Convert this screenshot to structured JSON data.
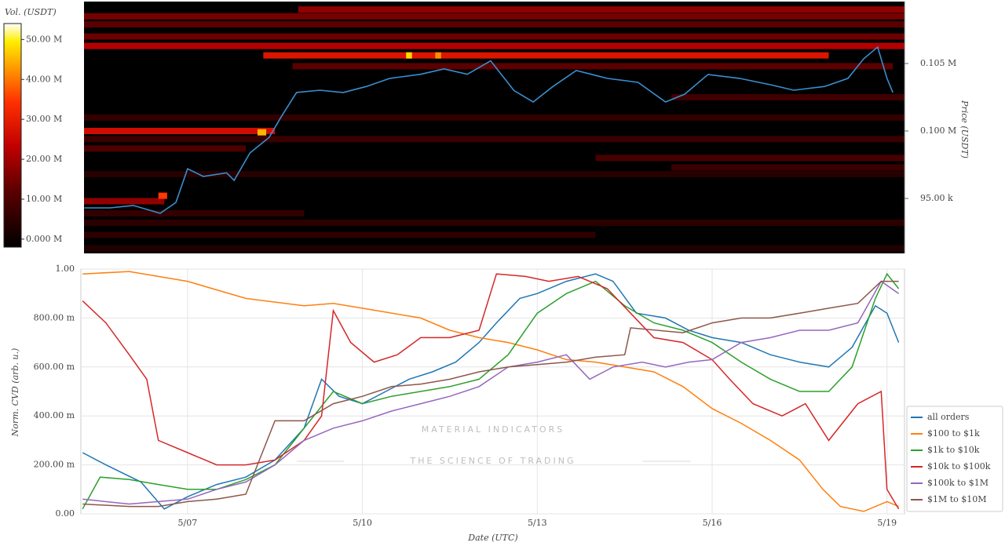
{
  "chart_data": [
    {
      "type": "heatmap",
      "y_label": "Price (USDT)",
      "colorbar_label": "Vol. (USDT)",
      "xlim": [
        5.17,
        19.3
      ],
      "ylim": [
        90930,
        109590
      ],
      "yticks": [
        {
          "value": 95000,
          "label": "95.00 k"
        },
        {
          "value": 100000,
          "label": "0.100 M"
        },
        {
          "value": 105000,
          "label": "0.105 M"
        }
      ],
      "vlim": [
        -2,
        54
      ],
      "vticks": [
        {
          "value": 0,
          "label": "0.000 M"
        },
        {
          "value": 10,
          "label": "10.00 M"
        },
        {
          "value": 20,
          "label": "20.00 M"
        },
        {
          "value": 30,
          "label": "30.00 M"
        },
        {
          "value": 40,
          "label": "40.00 M"
        },
        {
          "value": 50,
          "label": "50.00 M"
        }
      ],
      "cells": [
        {
          "price": 109000,
          "start": 8.9,
          "end": 19.3,
          "volume": 18
        },
        {
          "price": 108500,
          "start": 5.17,
          "end": 19.3,
          "volume": 15
        },
        {
          "price": 107900,
          "start": 5.17,
          "end": 19.3,
          "volume": 12
        },
        {
          "price": 107000,
          "start": 5.17,
          "end": 19.3,
          "volume": 14
        },
        {
          "price": 106300,
          "start": 5.17,
          "end": 19.3,
          "volume": 22
        },
        {
          "price": 105600,
          "start": 8.3,
          "end": 18.0,
          "volume": 28
        },
        {
          "price": 104800,
          "start": 8.8,
          "end": 19.1,
          "volume": 12
        },
        {
          "price": 102500,
          "start": 15.3,
          "end": 19.3,
          "volume": 8
        },
        {
          "price": 101000,
          "start": 5.17,
          "end": 19.3,
          "volume": 6
        },
        {
          "price": 100000,
          "start": 5.17,
          "end": 8.5,
          "volume": 26
        },
        {
          "price": 99400,
          "start": 5.17,
          "end": 19.3,
          "volume": 7
        },
        {
          "price": 98700,
          "start": 5.17,
          "end": 8.0,
          "volume": 10
        },
        {
          "price": 98000,
          "start": 14.0,
          "end": 19.3,
          "volume": 9
        },
        {
          "price": 97300,
          "start": 15.3,
          "end": 19.3,
          "volume": 7
        },
        {
          "price": 96800,
          "start": 5.17,
          "end": 19.3,
          "volume": 4
        },
        {
          "price": 94800,
          "start": 5.17,
          "end": 6.6,
          "volume": 18
        },
        {
          "price": 93900,
          "start": 5.17,
          "end": 9.0,
          "volume": 6
        },
        {
          "price": 93200,
          "start": 5.17,
          "end": 19.3,
          "volume": 5
        },
        {
          "price": 92300,
          "start": 5.17,
          "end": 14.0,
          "volume": 5
        },
        {
          "price": 91300,
          "start": 5.17,
          "end": 19.3,
          "volume": 3
        },
        {
          "price": 95200,
          "start": 6.5,
          "end": 6.65,
          "volume": 35
        },
        {
          "price": 99900,
          "start": 8.2,
          "end": 8.35,
          "volume": 45
        },
        {
          "price": 105600,
          "start": 10.75,
          "end": 10.85,
          "volume": 48
        },
        {
          "price": 105600,
          "start": 11.25,
          "end": 11.35,
          "volume": 42
        }
      ],
      "price": {
        "color": "#3a8fd0",
        "x": [
          5.23,
          5.67,
          6.07,
          6.53,
          6.8,
          7.0,
          7.27,
          7.67,
          7.8,
          8.07,
          8.4,
          8.6,
          8.87,
          9.27,
          9.67,
          10.07,
          10.47,
          11.0,
          11.4,
          11.8,
          12.2,
          12.6,
          12.93,
          13.27,
          13.67,
          14.2,
          14.73,
          15.2,
          15.53,
          15.93,
          16.47,
          17.0,
          17.4,
          17.93,
          18.33,
          18.6,
          18.84,
          19.0,
          19.1
        ],
        "values": [
          94300,
          94300,
          94480,
          93900,
          94700,
          97200,
          96630,
          96900,
          96340,
          98370,
          99530,
          101000,
          102850,
          103020,
          102850,
          103300,
          103900,
          104200,
          104600,
          104200,
          105200,
          103000,
          102150,
          103300,
          104480,
          103900,
          103600,
          102150,
          102730,
          104190,
          103900,
          103430,
          103020,
          103300,
          103900,
          105350,
          106220,
          103900,
          102850
        ]
      }
    },
    {
      "type": "line",
      "x_label": "Date (UTC)",
      "y_label": "Norm. CVD (arb. u.)",
      "watermark": [
        "MATERIAL INDICATORS",
        "THE SCIENCE OF TRADING"
      ],
      "xlim": [
        5.17,
        19.3
      ],
      "xticks": [
        {
          "value": 7,
          "label": "5/07"
        },
        {
          "value": 10,
          "label": "5/10"
        },
        {
          "value": 13,
          "label": "5/13"
        },
        {
          "value": 16,
          "label": "5/16"
        },
        {
          "value": 19,
          "label": "5/19"
        }
      ],
      "ylim": [
        0,
        1
      ],
      "yticks": [
        {
          "value": 0,
          "label": "0.00"
        },
        {
          "value": 0.2,
          "label": "200.00 m"
        },
        {
          "value": 0.4,
          "label": "400.00 m"
        },
        {
          "value": 0.6,
          "label": "600.00 m"
        },
        {
          "value": 0.8,
          "label": "800.00 m"
        },
        {
          "value": 1,
          "label": "1.00"
        }
      ],
      "legend": "right",
      "series": [
        {
          "name": "all orders",
          "color": "#1f77b4",
          "x": [
            5.2,
            5.6,
            6.2,
            6.6,
            7.0,
            7.5,
            8.0,
            8.5,
            9.0,
            9.3,
            9.6,
            10.0,
            10.4,
            10.8,
            11.2,
            11.6,
            12.0,
            12.3,
            12.7,
            13.0,
            13.5,
            14.0,
            14.3,
            14.7,
            15.2,
            15.6,
            16.0,
            16.5,
            17.0,
            17.5,
            18.0,
            18.4,
            18.8,
            19.0,
            19.2
          ],
          "values": [
            0.25,
            0.2,
            0.13,
            0.02,
            0.07,
            0.12,
            0.15,
            0.22,
            0.35,
            0.55,
            0.48,
            0.45,
            0.5,
            0.55,
            0.58,
            0.62,
            0.7,
            0.78,
            0.88,
            0.9,
            0.95,
            0.98,
            0.95,
            0.82,
            0.8,
            0.75,
            0.72,
            0.7,
            0.65,
            0.62,
            0.6,
            0.68,
            0.85,
            0.82,
            0.7
          ]
        },
        {
          "name": "$100 to $1k",
          "color": "#ff7f0e",
          "x": [
            5.2,
            6.0,
            7.0,
            8.0,
            9.0,
            9.5,
            10.0,
            11.0,
            11.5,
            12.0,
            12.5,
            13.0,
            13.5,
            14.0,
            14.5,
            15.0,
            15.5,
            16.0,
            16.5,
            17.0,
            17.5,
            17.9,
            18.2,
            18.6,
            19.0,
            19.2
          ],
          "values": [
            0.98,
            0.99,
            0.95,
            0.88,
            0.85,
            0.86,
            0.84,
            0.8,
            0.75,
            0.72,
            0.7,
            0.67,
            0.63,
            0.62,
            0.6,
            0.58,
            0.52,
            0.43,
            0.37,
            0.3,
            0.22,
            0.1,
            0.03,
            0.01,
            0.05,
            0.03
          ]
        },
        {
          "name": "$1k to $10k",
          "color": "#2ca02c",
          "x": [
            5.2,
            5.5,
            6.0,
            6.5,
            7.0,
            7.5,
            8.0,
            8.5,
            9.0,
            9.5,
            10.0,
            10.5,
            11.0,
            11.5,
            12.0,
            12.5,
            13.0,
            13.5,
            14.0,
            14.5,
            15.0,
            15.5,
            16.0,
            16.5,
            17.0,
            17.5,
            18.0,
            18.4,
            18.8,
            19.0,
            19.2
          ],
          "values": [
            0.02,
            0.15,
            0.14,
            0.12,
            0.1,
            0.1,
            0.14,
            0.2,
            0.35,
            0.5,
            0.45,
            0.48,
            0.5,
            0.52,
            0.55,
            0.65,
            0.82,
            0.9,
            0.95,
            0.85,
            0.78,
            0.75,
            0.7,
            0.62,
            0.55,
            0.5,
            0.5,
            0.6,
            0.88,
            0.98,
            0.92
          ]
        },
        {
          "name": "$10k to $100k",
          "color": "#d62728",
          "x": [
            5.2,
            5.6,
            6.0,
            6.3,
            6.5,
            7.0,
            7.5,
            8.0,
            8.5,
            9.0,
            9.3,
            9.5,
            9.8,
            10.2,
            10.6,
            11.0,
            11.5,
            12.0,
            12.3,
            12.8,
            13.2,
            13.7,
            14.2,
            14.6,
            15.0,
            15.5,
            16.0,
            16.3,
            16.7,
            17.2,
            17.6,
            18.0,
            18.5,
            18.9,
            19.0,
            19.2
          ],
          "values": [
            0.87,
            0.78,
            0.65,
            0.55,
            0.3,
            0.25,
            0.2,
            0.2,
            0.22,
            0.3,
            0.4,
            0.83,
            0.7,
            0.62,
            0.65,
            0.72,
            0.72,
            0.75,
            0.98,
            0.97,
            0.95,
            0.97,
            0.92,
            0.82,
            0.72,
            0.7,
            0.63,
            0.55,
            0.45,
            0.4,
            0.45,
            0.3,
            0.45,
            0.5,
            0.1,
            0.02
          ]
        },
        {
          "name": "$100k to $1M",
          "color": "#9467bd",
          "x": [
            5.2,
            6.0,
            7.0,
            7.5,
            8.0,
            8.5,
            9.0,
            9.5,
            10.0,
            10.5,
            11.0,
            11.5,
            12.0,
            12.5,
            13.0,
            13.5,
            13.9,
            14.3,
            14.8,
            15.2,
            15.6,
            16.0,
            16.5,
            17.0,
            17.5,
            18.0,
            18.5,
            18.9,
            19.2
          ],
          "values": [
            0.06,
            0.04,
            0.06,
            0.1,
            0.13,
            0.2,
            0.3,
            0.35,
            0.38,
            0.42,
            0.45,
            0.48,
            0.52,
            0.6,
            0.62,
            0.65,
            0.55,
            0.6,
            0.62,
            0.6,
            0.62,
            0.63,
            0.7,
            0.72,
            0.75,
            0.75,
            0.78,
            0.95,
            0.9
          ]
        },
        {
          "name": "$1M to $10M",
          "color": "#8c564b",
          "x": [
            5.2,
            6.0,
            6.5,
            7.0,
            7.5,
            8.0,
            8.5,
            9.0,
            9.5,
            10.0,
            10.5,
            11.0,
            11.5,
            12.0,
            12.5,
            13.0,
            13.5,
            14.0,
            14.5,
            14.6,
            15.5,
            16.0,
            16.5,
            17.0,
            17.5,
            18.0,
            18.5,
            18.9,
            19.2
          ],
          "values": [
            0.04,
            0.03,
            0.03,
            0.05,
            0.06,
            0.08,
            0.38,
            0.38,
            0.45,
            0.48,
            0.52,
            0.53,
            0.55,
            0.58,
            0.6,
            0.61,
            0.62,
            0.64,
            0.65,
            0.76,
            0.74,
            0.78,
            0.8,
            0.8,
            0.82,
            0.84,
            0.86,
            0.95,
            0.95
          ]
        }
      ]
    }
  ]
}
